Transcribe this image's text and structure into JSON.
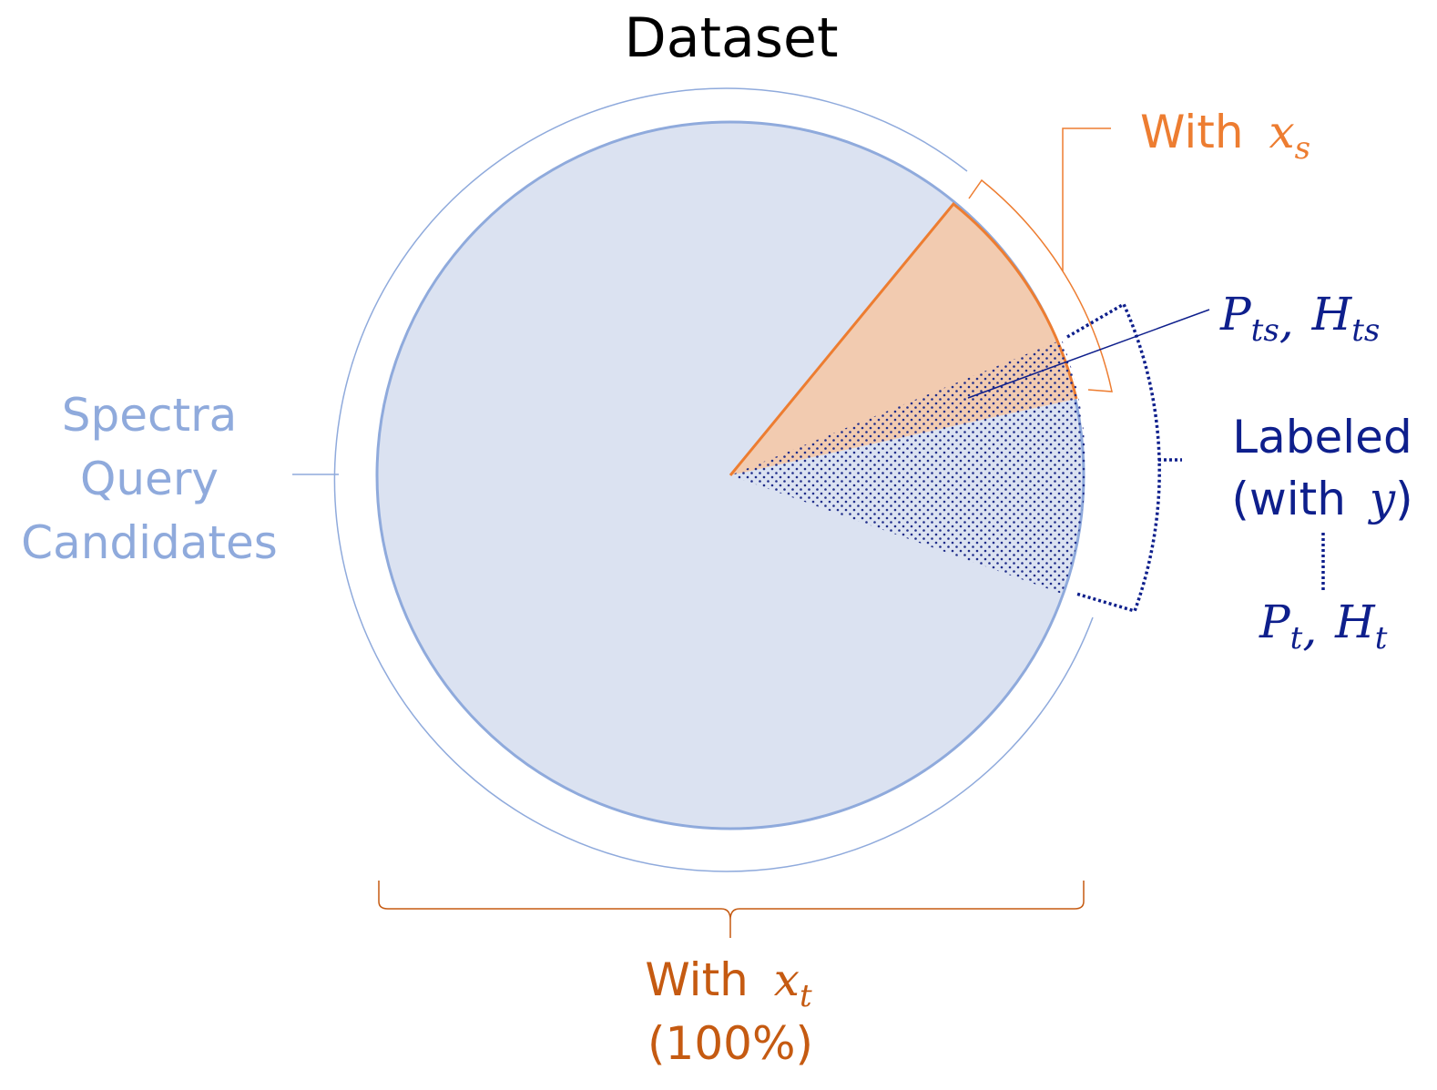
{
  "title": "Dataset",
  "labels": {
    "spectra_line1": "Spectra",
    "spectra_line2": "Query",
    "spectra_line3": "Candidates",
    "with_xs_prefix": "With",
    "with_xs_var": "x",
    "with_xs_sub": "s",
    "pts_p": "P",
    "pts_p_sub": "ts",
    "pts_h": "H",
    "pts_h_sub": "ts",
    "labeled_line1": "Labeled",
    "labeled_line2_open": "(with",
    "labeled_line2_var": "y",
    "labeled_line2_close": ")",
    "pt_p": "P",
    "pt_p_sub": "t",
    "pt_h": "H",
    "pt_h_sub": "t",
    "with_xt_prefix": "With",
    "with_xt_var": "x",
    "with_xt_sub": "t",
    "with_xt_pct": "(100%)",
    "comma": ","
  },
  "colors": {
    "query_fill": "#dbe2f1",
    "query_stroke": "#8faadc",
    "source_fill": "#f2cbb0",
    "source_stroke": "#ed7d31",
    "labeled_dot": "#1f2d8a",
    "navy_text": "#0e1f8c",
    "light_blue_text": "#8faadc",
    "orange_text": "#ed7d31",
    "brown_text": "#c55a11",
    "title_text": "#000000"
  }
}
